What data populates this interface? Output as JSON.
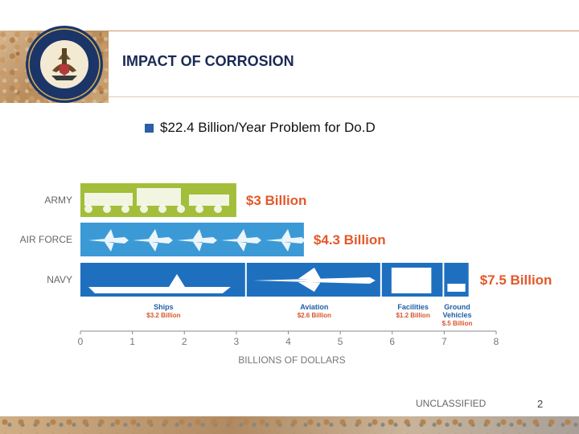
{
  "slide": {
    "title": "IMPACT OF CORROSION",
    "bullet": "$22.4 Billion/Year Problem for Do.D",
    "footer_classification": "UNCLASSIFIED",
    "page_number": "2"
  },
  "colors": {
    "army": "#a3be3a",
    "air_force": "#3b9ad6",
    "navy": "#1f6fbf",
    "total_label": "#e4582a",
    "row_label": "#666666",
    "segment_name": "#1f5fa8",
    "segment_value": "#d9542a"
  },
  "chart_data": {
    "type": "bar",
    "orientation": "horizontal",
    "stacked": true,
    "categories": [
      "ARMY",
      "AIR FORCE",
      "NAVY"
    ],
    "totals": [
      3.0,
      4.3,
      7.5
    ],
    "total_labels": [
      "$3 Billion",
      "$4.3 Billion",
      "$7.5 Billion"
    ],
    "navy_segments": [
      {
        "name": "Ships",
        "label": "$3.2 Billion",
        "value": 3.2,
        "icon": "ship-icon"
      },
      {
        "name": "Aviation",
        "label": "$2.6 Billion",
        "value": 2.6,
        "icon": "jet-icon"
      },
      {
        "name": "Facilities",
        "label": "$1.2 Billion",
        "value": 1.2,
        "icon": "building-icon"
      },
      {
        "name": "Ground Vehicles",
        "label": "$.5 Billion",
        "value": 0.5,
        "icon": "vehicle-icon"
      }
    ],
    "xlabel": "BILLIONS OF DOLLARS",
    "xticks": [
      "0",
      "1",
      "2",
      "3",
      "4",
      "5",
      "6",
      "7",
      "8"
    ],
    "xlim": [
      0,
      8
    ],
    "grid": false
  }
}
